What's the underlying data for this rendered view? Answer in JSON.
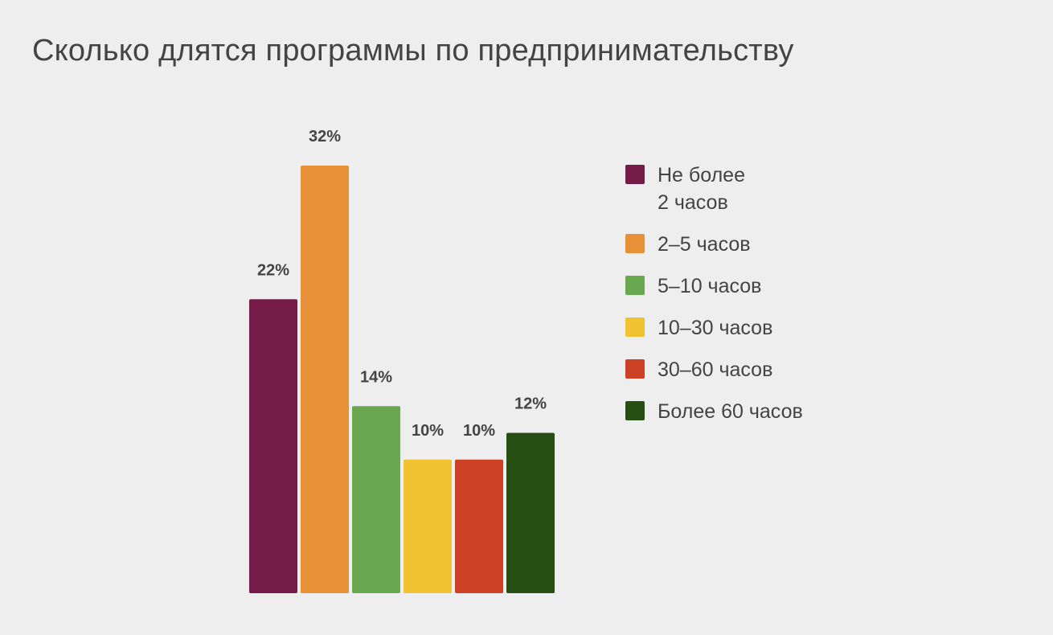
{
  "chart_data": {
    "type": "bar",
    "title": "Сколько длятся программы по предпринимательству",
    "categories": [
      "Не более\n2 часов",
      "2–5 часов",
      "5–10 часов",
      "10–30 часов",
      "30–60 часов",
      "Более 60 часов"
    ],
    "values": [
      22,
      32,
      14,
      10,
      10,
      12
    ],
    "value_labels": [
      "22%",
      "32%",
      "14%",
      "10%",
      "10%",
      "12%"
    ],
    "colors": [
      "#741b47",
      "#e69138",
      "#6aa84f",
      "#f1c232",
      "#cc4125",
      "#274e13"
    ],
    "unit": "%",
    "ylim": [
      0,
      32
    ],
    "grid": false,
    "legend_position": "right"
  }
}
